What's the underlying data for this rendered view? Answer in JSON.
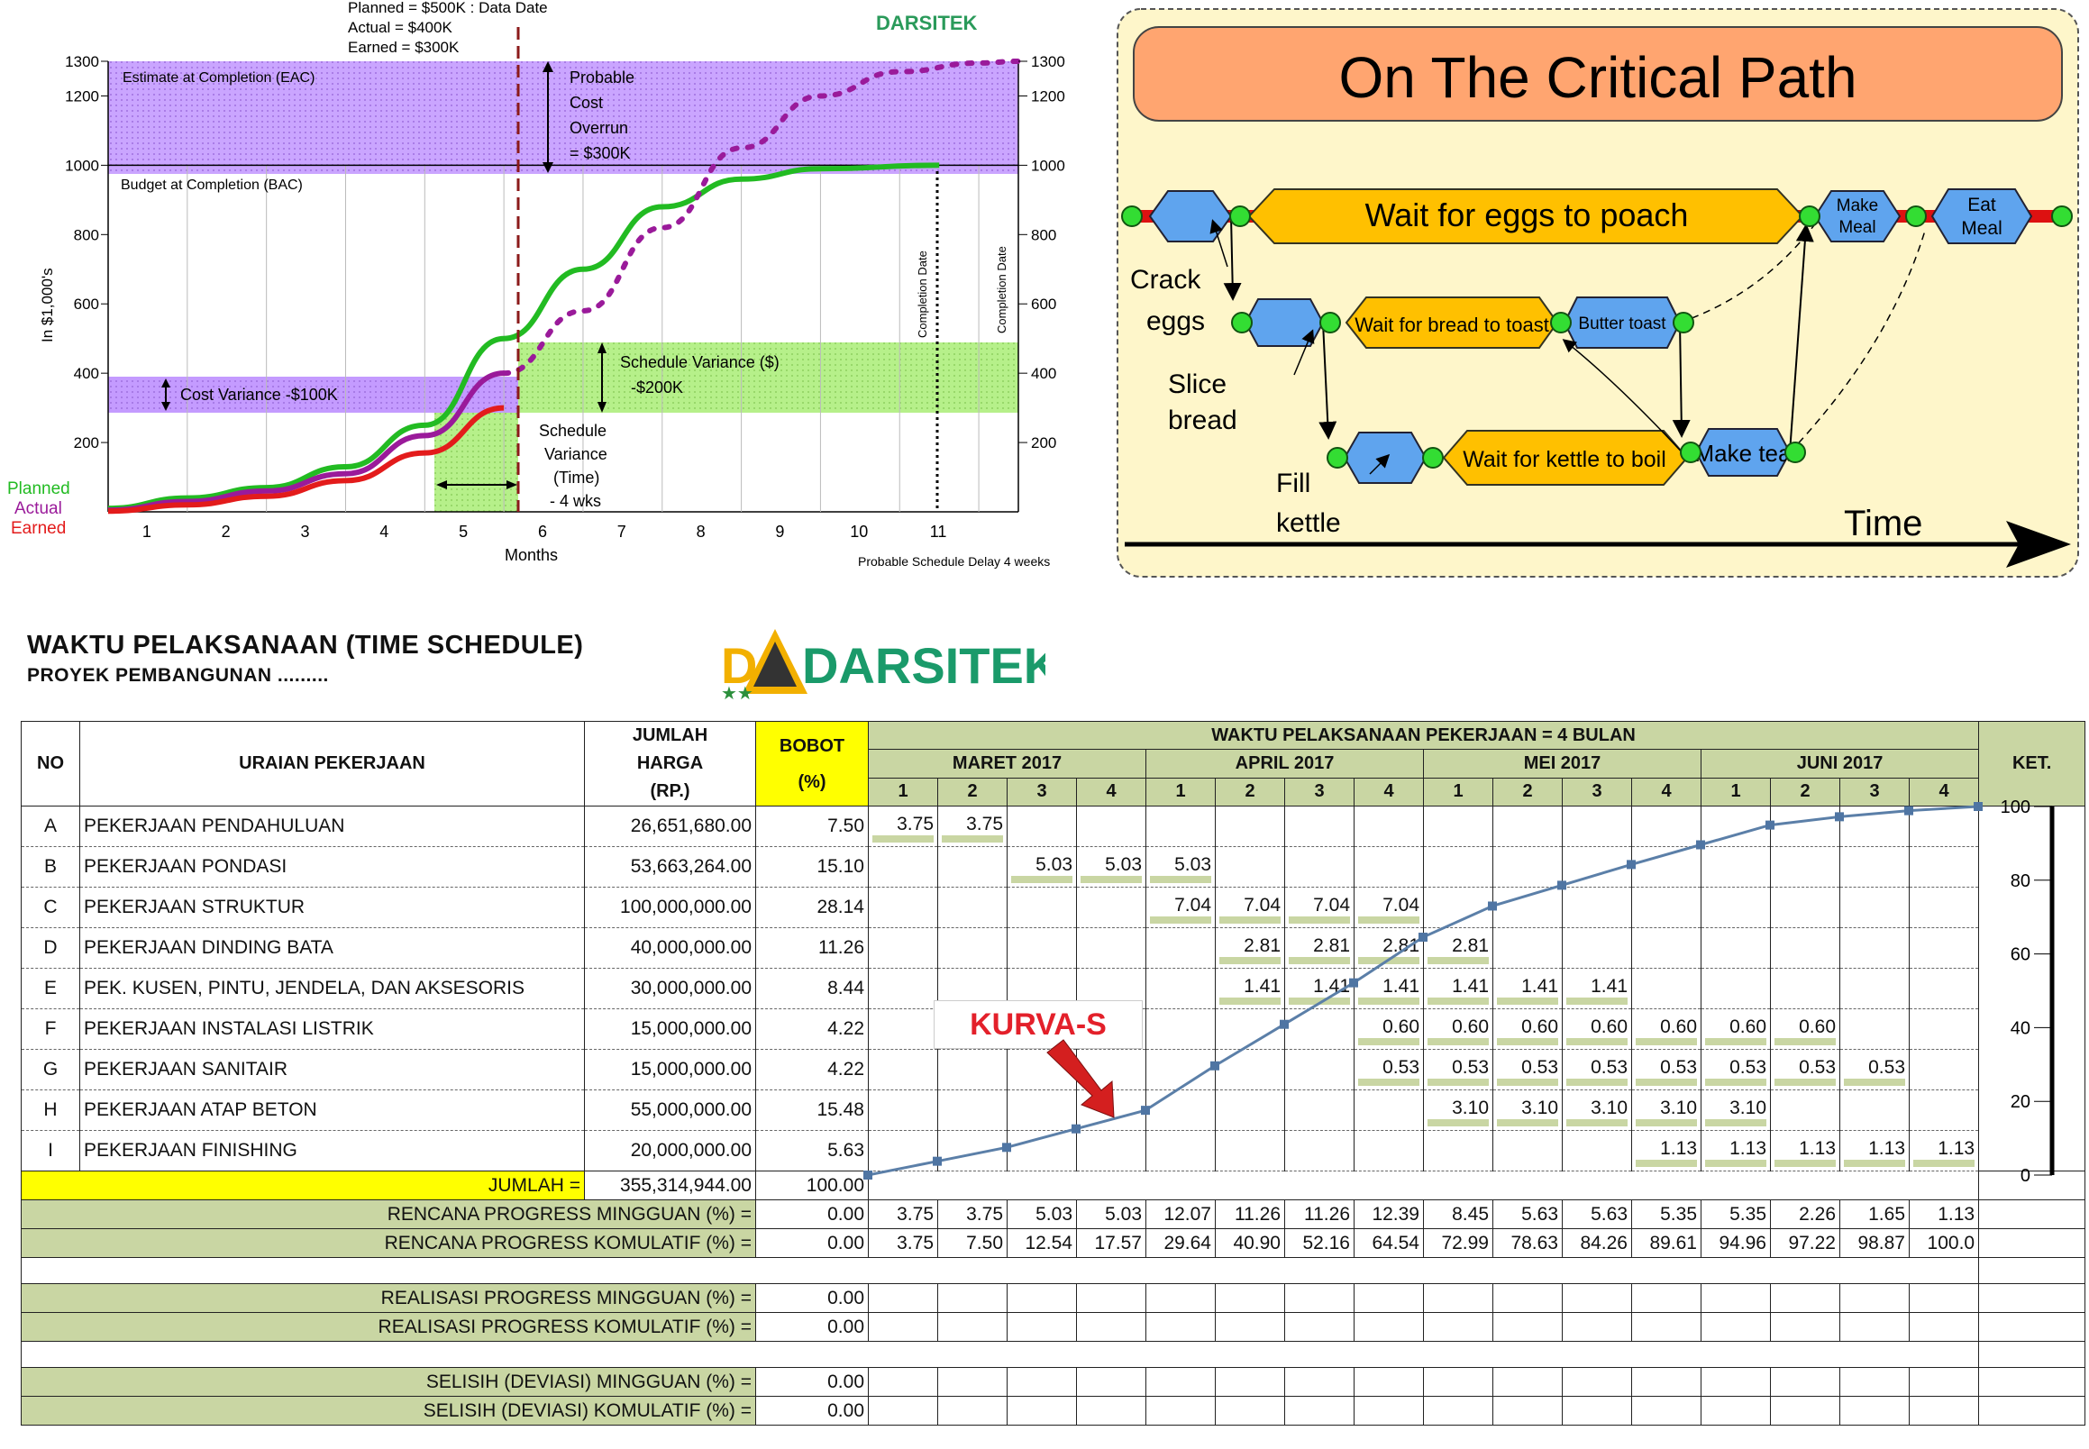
{
  "evm_chart": {
    "header_lines": [
      "Planned = $500K : Data Date",
      "Actual   = $400K",
      "Earned   = $300K"
    ],
    "logo_text": "DARSITEK",
    "band_eac_label": "Estimate at Completion (EAC)",
    "bac_label": "Budget at Completion (BAC)",
    "overrun_lines": [
      "Probable",
      "Cost",
      "Overrun",
      "= $300K"
    ],
    "cost_variance_label": "Cost Variance -$100K",
    "schedule_variance_lines": [
      "Schedule Variance ($)",
      "-$200K"
    ],
    "time_variance_lines": [
      "Schedule",
      "Variance",
      "(Time)",
      "- 4 wks"
    ],
    "completion_date_label": "Completion Date",
    "completion_date_label_right": "Completion Date",
    "legend": [
      {
        "name": "Planned",
        "color": "#22bb22"
      },
      {
        "name": "Actual",
        "color": "#9a1a9a"
      },
      {
        "name": "Earned",
        "color": "#e31b1b"
      }
    ],
    "ylabel": "In $1,000's",
    "xlabel": "Months",
    "delay_note": "Probable Schedule Delay   4 weeks"
  },
  "chart_data": [
    {
      "type": "line",
      "title": "",
      "xlabel": "Months",
      "ylabel": "In $1,000's",
      "x_ticks": [
        "1",
        "2",
        "3",
        "4",
        "5",
        "6",
        "7",
        "8",
        "9",
        "10",
        "11"
      ],
      "y_ticks_left": [
        "200",
        "400",
        "600",
        "800",
        "1000",
        "1200",
        "1300"
      ],
      "y_ticks_right": [
        "200",
        "400",
        "600",
        "800",
        "1000",
        "1200",
        "1300"
      ],
      "xlim": [
        0,
        11.5
      ],
      "ylim": [
        0,
        1300
      ],
      "series": [
        {
          "name": "Planned",
          "color": "#22bb22",
          "style": "solid",
          "x": [
            0,
            1,
            2,
            3,
            4,
            5,
            6,
            7,
            8,
            9,
            10.5
          ],
          "y": [
            10,
            40,
            70,
            130,
            250,
            500,
            700,
            880,
            960,
            990,
            1000
          ]
        },
        {
          "name": "Actual",
          "color": "#9a1a9a",
          "style": "solid",
          "x": [
            0,
            1,
            2,
            3,
            4,
            5
          ],
          "y": [
            5,
            30,
            60,
            110,
            220,
            400
          ]
        },
        {
          "name": "Earned",
          "color": "#e31b1b",
          "style": "solid",
          "x": [
            0,
            1,
            2,
            3,
            4,
            5
          ],
          "y": [
            2,
            20,
            45,
            90,
            170,
            300
          ]
        },
        {
          "name": "Actual (forecast)",
          "color": "#9a1a9a",
          "style": "dotted",
          "x": [
            5,
            6,
            7,
            8,
            9,
            10,
            11,
            11.5
          ],
          "y": [
            400,
            580,
            820,
            1050,
            1200,
            1270,
            1295,
            1300
          ]
        }
      ],
      "data_date_month": 5,
      "completion_month": 10.5
    },
    {
      "type": "line",
      "title": "KURVA-S",
      "xlabel": "",
      "ylabel": "",
      "y_ticks": [
        "0",
        "20",
        "40",
        "60",
        "80",
        "100"
      ],
      "ylim": [
        0,
        100
      ],
      "series": [
        {
          "name": "KURVA-S",
          "x": [
            0,
            1,
            2,
            3,
            4,
            5,
            6,
            7,
            8,
            9,
            10,
            11,
            12,
            13,
            14,
            15,
            16
          ],
          "y": [
            0,
            3.75,
            7.5,
            12.54,
            17.57,
            29.64,
            40.9,
            52.16,
            64.54,
            72.99,
            78.63,
            84.26,
            89.61,
            94.96,
            97.22,
            98.87,
            100.0
          ]
        }
      ]
    }
  ],
  "critical_path": {
    "title": "On The Critical Path",
    "main_task": "Wait for eggs to poach",
    "make_meal": [
      "Make",
      "Meal"
    ],
    "eat_meal": [
      "Eat",
      "Meal"
    ],
    "crack_eggs": [
      "Crack",
      "eggs"
    ],
    "slice_bread": [
      "Slice",
      "bread"
    ],
    "fill_kettle": [
      "Fill",
      "kettle"
    ],
    "wait_bread": "Wait for bread to toast",
    "butter_toast": "Butter toast",
    "wait_kettle": "Wait for kettle to boil",
    "make_tea": "Make tea",
    "time_label": "Time"
  },
  "schedule": {
    "title": "WAKTU PELAKSANAAN (TIME SCHEDULE)",
    "subtitle": "PROYEK PEMBANGUNAN .........",
    "logo_text": "DARSITEK",
    "kurva_label": "KURVA-S",
    "headers": {
      "no": "NO",
      "uraian": "URAIAN PEKERJAAN",
      "jumlah": [
        "JUMLAH",
        "HARGA",
        "(RP.)"
      ],
      "bobot": [
        "BOBOT",
        "(%)"
      ],
      "waktu": "WAKTU PELAKSANAAN PEKERJAAN = 4 BULAN",
      "ket": "KET.",
      "months": [
        "MARET 2017",
        "APRIL 2017",
        "MEI 2017",
        "JUNI 2017"
      ],
      "weeks": [
        "1",
        "2",
        "3",
        "4",
        "1",
        "2",
        "3",
        "4",
        "1",
        "2",
        "3",
        "4",
        "1",
        "2",
        "3",
        "4"
      ]
    },
    "rows": [
      {
        "no": "A",
        "uraian": "PEKERJAAN PENDAHULUAN",
        "harga": "26,651,680.00",
        "bobot": "7.50",
        "weeks": {
          "0": "3.75",
          "1": "3.75"
        }
      },
      {
        "no": "B",
        "uraian": "PEKERJAAN PONDASI",
        "harga": "53,663,264.00",
        "bobot": "15.10",
        "weeks": {
          "2": "5.03",
          "3": "5.03",
          "4": "5.03"
        }
      },
      {
        "no": "C",
        "uraian": "PEKERJAAN STRUKTUR",
        "harga": "100,000,000.00",
        "bobot": "28.14",
        "weeks": {
          "4": "7.04",
          "5": "7.04",
          "6": "7.04",
          "7": "7.04"
        }
      },
      {
        "no": "D",
        "uraian": "PEKERJAAN DINDING BATA",
        "harga": "40,000,000.00",
        "bobot": "11.26",
        "weeks": {
          "5": "2.81",
          "6": "2.81",
          "7": "2.81",
          "8": "2.81"
        }
      },
      {
        "no": "E",
        "uraian": "PEK. KUSEN, PINTU, JENDELA, DAN AKSESORIS",
        "harga": "30,000,000.00",
        "bobot": "8.44",
        "weeks": {
          "5": "1.41",
          "6": "1.41",
          "7": "1.41",
          "8": "1.41",
          "9": "1.41",
          "10": "1.41"
        }
      },
      {
        "no": "F",
        "uraian": "PEKERJAAN INSTALASI LISTRIK",
        "harga": "15,000,000.00",
        "bobot": "4.22",
        "weeks": {
          "7": "0.60",
          "8": "0.60",
          "9": "0.60",
          "10": "0.60",
          "11": "0.60",
          "12": "0.60",
          "13": "0.60"
        }
      },
      {
        "no": "G",
        "uraian": "PEKERJAAN SANITAIR",
        "harga": "15,000,000.00",
        "bobot": "4.22",
        "weeks": {
          "7": "0.53",
          "8": "0.53",
          "9": "0.53",
          "10": "0.53",
          "11": "0.53",
          "12": "0.53",
          "13": "0.53",
          "14": "0.53"
        }
      },
      {
        "no": "H",
        "uraian": "PEKERJAAN ATAP BETON",
        "harga": "55,000,000.00",
        "bobot": "15.48",
        "weeks": {
          "8": "3.10",
          "9": "3.10",
          "10": "3.10",
          "11": "3.10",
          "12": "3.10"
        }
      },
      {
        "no": "I",
        "uraian": "PEKERJAAN FINISHING",
        "harga": "20,000,000.00",
        "bobot": "5.63",
        "weeks": {
          "11": "1.13",
          "12": "1.13",
          "13": "1.13",
          "14": "1.13",
          "15": "1.13"
        }
      }
    ],
    "jumlah_label": "JUMLAH =",
    "jumlah_harga": "355,314,944.00",
    "jumlah_bobot": "100.00",
    "summary": [
      {
        "label": "RENCANA PROGRESS MINGGUAN (%) =",
        "value": "0.00",
        "weeks": [
          "3.75",
          "3.75",
          "5.03",
          "5.03",
          "12.07",
          "11.26",
          "11.26",
          "12.39",
          "8.45",
          "5.63",
          "5.63",
          "5.35",
          "5.35",
          "2.26",
          "1.65",
          "1.13"
        ]
      },
      {
        "label": "RENCANA PROGRESS KOMULATIF (%) =",
        "value": "0.00",
        "weeks": [
          "3.75",
          "7.50",
          "12.54",
          "17.57",
          "29.64",
          "40.90",
          "52.16",
          "64.54",
          "72.99",
          "78.63",
          "84.26",
          "89.61",
          "94.96",
          "97.22",
          "98.87",
          "100.0"
        ]
      },
      {
        "label": "REALISASI PROGRESS MINGGUAN (%) =",
        "value": "0.00",
        "weeks": []
      },
      {
        "label": "REALISASI PROGRESS KOMULATIF (%) =",
        "value": "0.00",
        "weeks": []
      },
      {
        "label": "SELISIH (DEVIASI) MINGGUAN  (%) =",
        "value": "0.00",
        "weeks": []
      },
      {
        "label": "SELISIH (DEVIASI) KOMULATIF  (%) =",
        "value": "0.00",
        "weeks": []
      }
    ],
    "scale_ticks": [
      "100",
      "80",
      "60",
      "40",
      "20",
      "0"
    ]
  }
}
